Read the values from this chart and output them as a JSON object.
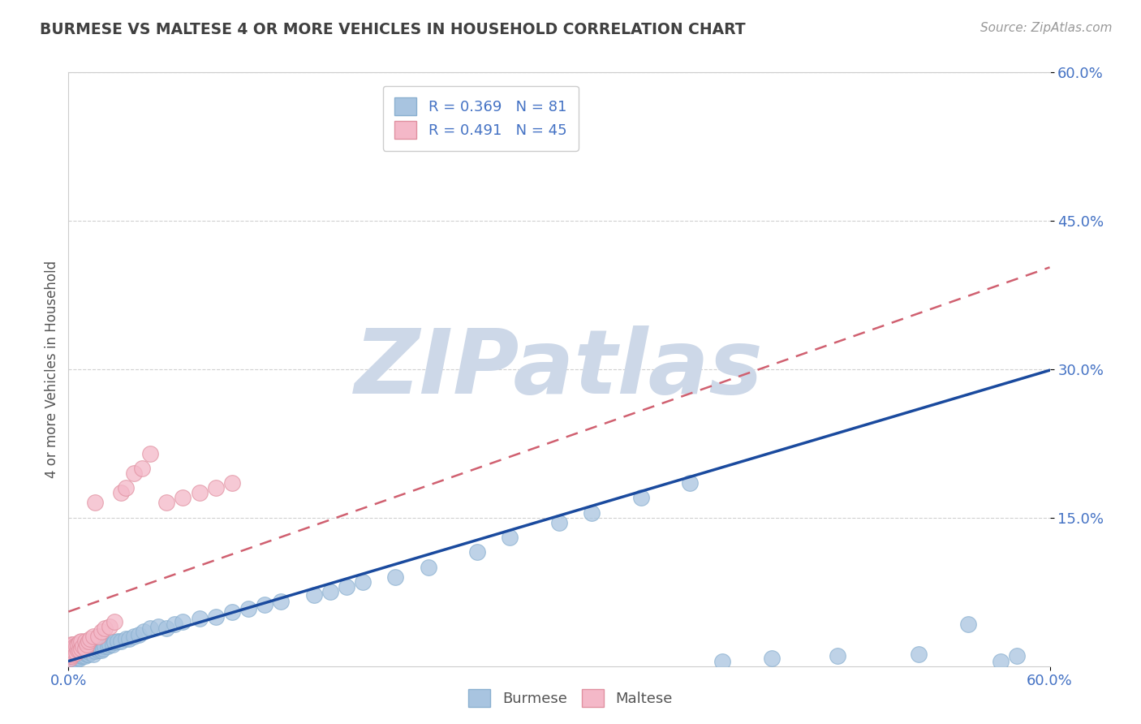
{
  "title": "BURMESE VS MALTESE 4 OR MORE VEHICLES IN HOUSEHOLD CORRELATION CHART",
  "source_text": "Source: ZipAtlas.com",
  "ylabel": "4 or more Vehicles in Household",
  "xmin": 0.0,
  "xmax": 0.6,
  "ymin": 0.0,
  "ymax": 0.6,
  "burmese_R": 0.369,
  "burmese_N": 81,
  "maltese_R": 0.491,
  "maltese_N": 45,
  "burmese_color": "#a8c4e0",
  "maltese_color": "#f4b8c8",
  "burmese_line_color": "#1a4a9e",
  "maltese_line_color": "#d06070",
  "background_color": "#ffffff",
  "plot_bg_color": "#ffffff",
  "watermark": "ZIPatlas",
  "watermark_color": "#cdd8e8",
  "title_color": "#404040",
  "axis_label_color": "#4472c4",
  "legend_text_color": "#4472c4",
  "burmese_line_intercept": 0.005,
  "burmese_line_slope": 0.49,
  "maltese_line_intercept": 0.055,
  "maltese_line_slope": 0.58,
  "burmese_x": [
    0.001,
    0.001,
    0.001,
    0.002,
    0.002,
    0.002,
    0.003,
    0.003,
    0.003,
    0.004,
    0.004,
    0.005,
    0.005,
    0.005,
    0.006,
    0.006,
    0.007,
    0.007,
    0.008,
    0.008,
    0.009,
    0.009,
    0.01,
    0.01,
    0.01,
    0.011,
    0.011,
    0.012,
    0.012,
    0.013,
    0.014,
    0.015,
    0.015,
    0.016,
    0.017,
    0.018,
    0.019,
    0.02,
    0.021,
    0.022,
    0.024,
    0.025,
    0.027,
    0.028,
    0.03,
    0.032,
    0.035,
    0.037,
    0.04,
    0.043,
    0.046,
    0.05,
    0.055,
    0.06,
    0.065,
    0.07,
    0.08,
    0.09,
    0.1,
    0.11,
    0.12,
    0.13,
    0.15,
    0.16,
    0.17,
    0.18,
    0.2,
    0.22,
    0.25,
    0.27,
    0.3,
    0.32,
    0.35,
    0.38,
    0.4,
    0.43,
    0.47,
    0.52,
    0.55,
    0.57,
    0.58
  ],
  "burmese_y": [
    0.005,
    0.008,
    0.01,
    0.006,
    0.009,
    0.012,
    0.007,
    0.01,
    0.015,
    0.008,
    0.012,
    0.006,
    0.01,
    0.015,
    0.009,
    0.014,
    0.008,
    0.013,
    0.01,
    0.016,
    0.01,
    0.016,
    0.01,
    0.014,
    0.018,
    0.012,
    0.018,
    0.012,
    0.018,
    0.014,
    0.015,
    0.012,
    0.018,
    0.015,
    0.018,
    0.016,
    0.018,
    0.016,
    0.018,
    0.02,
    0.02,
    0.022,
    0.022,
    0.024,
    0.025,
    0.025,
    0.028,
    0.028,
    0.03,
    0.032,
    0.035,
    0.038,
    0.04,
    0.038,
    0.042,
    0.045,
    0.048,
    0.05,
    0.055,
    0.058,
    0.062,
    0.065,
    0.072,
    0.075,
    0.08,
    0.085,
    0.09,
    0.1,
    0.115,
    0.13,
    0.145,
    0.155,
    0.17,
    0.185,
    0.005,
    0.008,
    0.01,
    0.012,
    0.042,
    0.005,
    0.01
  ],
  "maltese_x": [
    0.001,
    0.001,
    0.001,
    0.001,
    0.001,
    0.002,
    0.002,
    0.002,
    0.002,
    0.003,
    0.003,
    0.003,
    0.004,
    0.004,
    0.005,
    0.005,
    0.006,
    0.006,
    0.007,
    0.007,
    0.008,
    0.008,
    0.009,
    0.01,
    0.01,
    0.011,
    0.012,
    0.013,
    0.015,
    0.016,
    0.018,
    0.02,
    0.022,
    0.025,
    0.028,
    0.032,
    0.035,
    0.04,
    0.045,
    0.05,
    0.06,
    0.07,
    0.08,
    0.09,
    0.1
  ],
  "maltese_y": [
    0.008,
    0.01,
    0.012,
    0.016,
    0.02,
    0.01,
    0.014,
    0.018,
    0.022,
    0.012,
    0.016,
    0.022,
    0.014,
    0.02,
    0.014,
    0.02,
    0.016,
    0.022,
    0.016,
    0.024,
    0.018,
    0.025,
    0.02,
    0.018,
    0.025,
    0.022,
    0.025,
    0.028,
    0.03,
    0.165,
    0.03,
    0.035,
    0.038,
    0.04,
    0.045,
    0.175,
    0.18,
    0.195,
    0.2,
    0.215,
    0.165,
    0.17,
    0.175,
    0.18,
    0.185
  ]
}
